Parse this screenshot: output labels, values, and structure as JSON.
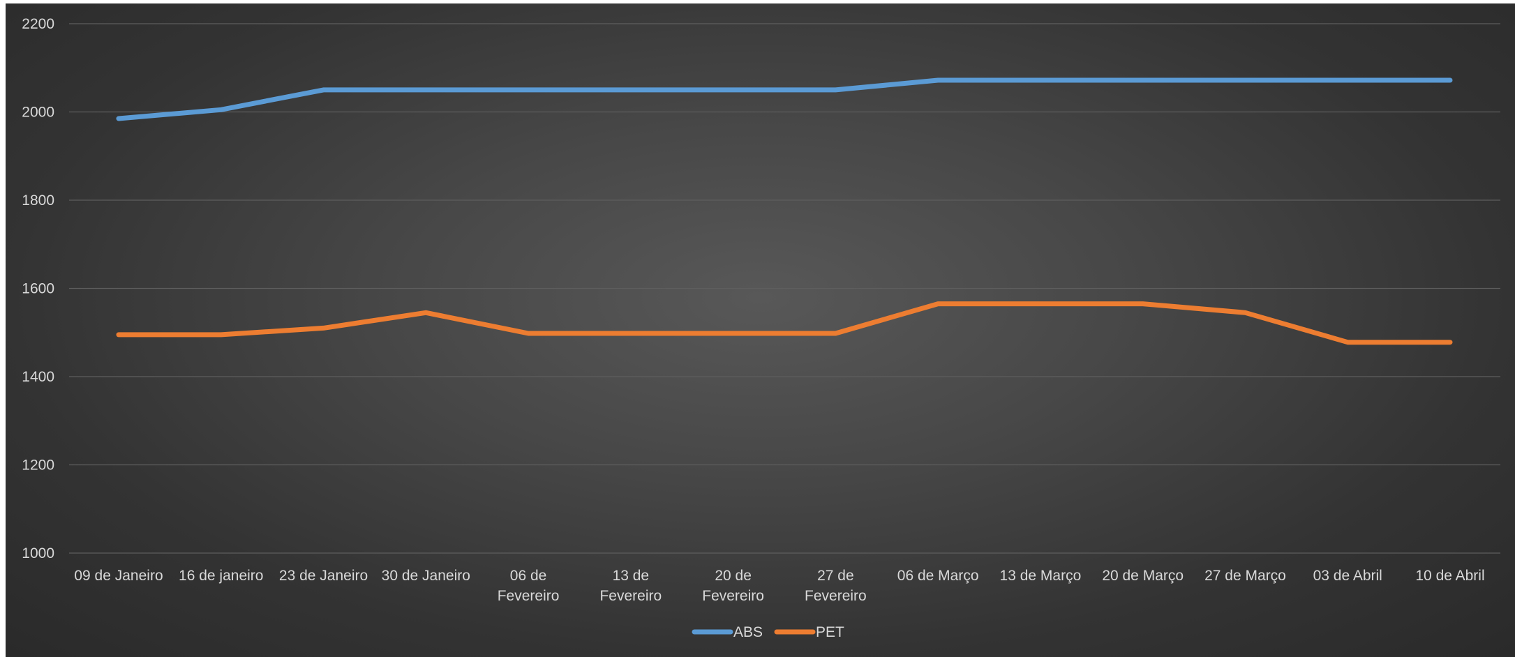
{
  "chart_data": {
    "type": "line",
    "title": "",
    "xlabel": "",
    "ylabel": "",
    "ylim": [
      1000,
      2200
    ],
    "yticks": [
      1000,
      1200,
      1400,
      1600,
      1800,
      2000,
      2200
    ],
    "grid": true,
    "legend_position": "bottom",
    "categories": [
      "09 de Janeiro",
      "16 de janeiro",
      "23 de Janeiro",
      "30 de Janeiro",
      "06 de Fevereiro",
      "13 de Fevereiro",
      "20 de Fevereiro",
      "27 de Fevereiro",
      "06 de Março",
      "13 de Março",
      "20 de Março",
      "27 de Março",
      "03 de Abril",
      "10 de Abril"
    ],
    "series": [
      {
        "name": "ABS",
        "color": "#5b9bd5",
        "values": [
          1985,
          2005,
          2050,
          2050,
          2050,
          2050,
          2050,
          2050,
          2072,
          2072,
          2072,
          2072,
          2072,
          2072
        ]
      },
      {
        "name": "PET",
        "color": "#ed7d31",
        "values": [
          1495,
          1495,
          1510,
          1545,
          1498,
          1498,
          1498,
          1498,
          1565,
          1565,
          1565,
          1545,
          1478,
          1478
        ]
      }
    ]
  }
}
